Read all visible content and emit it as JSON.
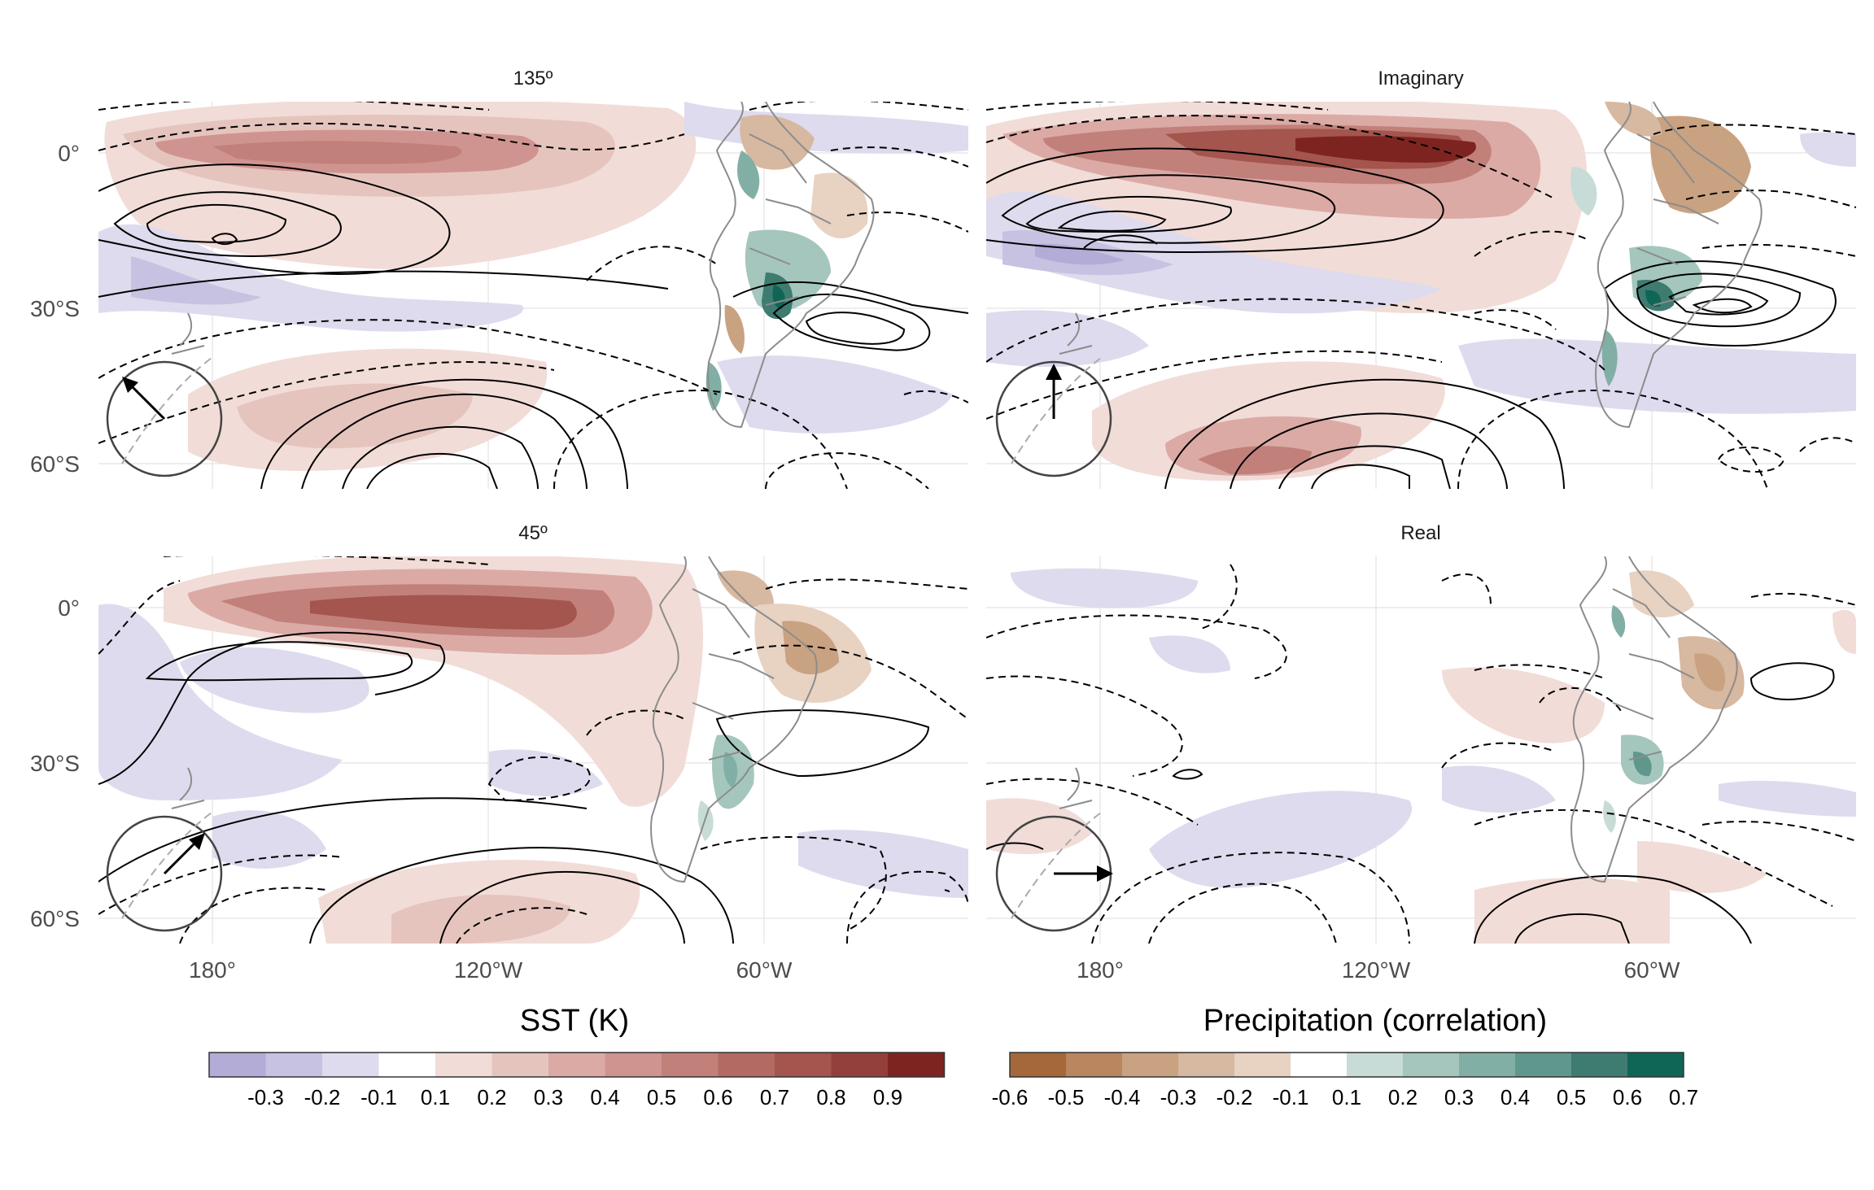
{
  "panels": [
    {
      "title": "135º",
      "arrow_angle_deg": 135
    },
    {
      "title": "Imaginary",
      "arrow_angle_deg": 90
    },
    {
      "title": "45º",
      "arrow_angle_deg": 45
    },
    {
      "title": "Real",
      "arrow_angle_deg": 0
    }
  ],
  "axes": {
    "lat_labels": [
      "0°",
      "30°S",
      "60°S"
    ],
    "lon_labels": [
      "180°",
      "120°W",
      "60°W"
    ]
  },
  "legend_sst": {
    "title": "SST (K)",
    "ticks": [
      "-0.3",
      "-0.2",
      "-0.1",
      "0.1",
      "0.2",
      "0.3",
      "0.4",
      "0.5",
      "0.6",
      "0.7",
      "0.8",
      "0.9"
    ],
    "colors": [
      "#b2acd6",
      "#c7c2e2",
      "#dedbee",
      "#ffffff",
      "#f1dcd8",
      "#e6c4be",
      "#dcaaa5",
      "#d09490",
      "#c2807b",
      "#b36a63",
      "#a3554e",
      "#933f3b",
      "#7e2420"
    ]
  },
  "legend_precip": {
    "title": "Precipitation (correlation)",
    "ticks": [
      "-0.6",
      "-0.5",
      "-0.4",
      "-0.3",
      "-0.2",
      "-0.1",
      "0.1",
      "0.2",
      "0.3",
      "0.4",
      "0.5",
      "0.6",
      "0.7"
    ],
    "colors": [
      "#a5683a",
      "#b98660",
      "#c9a282",
      "#d7b8a0",
      "#e8d2c2",
      "#ffffff",
      "#c7dcd6",
      "#a4c6bd",
      "#82afa5",
      "#5f978c",
      "#3e7c71",
      "#0f6656"
    ]
  }
}
